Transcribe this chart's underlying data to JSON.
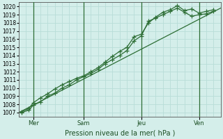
{
  "xlabel": "Pression niveau de la mer( hPa )",
  "bg_color": "#d4eeea",
  "grid_color": "#b8ddd8",
  "line_color": "#2d6e35",
  "ylim": [
    1006.5,
    1020.5
  ],
  "yticks": [
    1007,
    1008,
    1009,
    1010,
    1011,
    1012,
    1013,
    1014,
    1015,
    1016,
    1017,
    1018,
    1019,
    1020
  ],
  "xlim": [
    0,
    14
  ],
  "day_labels": [
    "Mer",
    "Sam",
    "Jeu",
    "Ven"
  ],
  "day_vline_x": [
    1.0,
    4.5,
    8.5,
    12.5
  ],
  "trend_x": [
    0,
    14
  ],
  "trend_y": [
    1007.0,
    1019.8
  ],
  "series1_x": [
    0.2,
    0.7,
    1.0,
    1.5,
    2.0,
    2.5,
    3.0,
    3.5,
    4.0,
    4.5,
    5.0,
    5.5,
    6.0,
    6.5,
    7.0,
    7.5,
    8.0,
    8.5,
    9.0,
    9.5,
    10.0,
    10.5,
    11.0,
    11.5,
    12.0,
    12.5,
    13.0,
    13.5
  ],
  "series1_y": [
    1007.1,
    1007.5,
    1008.2,
    1008.8,
    1009.3,
    1009.9,
    1010.4,
    1010.8,
    1011.2,
    1011.5,
    1012.0,
    1012.5,
    1013.2,
    1013.9,
    1014.5,
    1015.0,
    1016.3,
    1016.6,
    1018.0,
    1018.7,
    1019.3,
    1019.6,
    1020.1,
    1019.5,
    1019.7,
    1019.2,
    1019.4,
    1019.6
  ],
  "series2_x": [
    0.2,
    0.7,
    1.0,
    1.5,
    2.0,
    2.5,
    3.0,
    3.5,
    4.0,
    4.5,
    5.0,
    5.5,
    6.0,
    6.5,
    7.0,
    7.5,
    8.0,
    8.5,
    9.0,
    9.5,
    10.0,
    10.5,
    11.0,
    11.5,
    12.0,
    12.5,
    13.0,
    13.5
  ],
  "series2_y": [
    1007.0,
    1007.3,
    1007.9,
    1008.3,
    1009.0,
    1009.4,
    1010.0,
    1010.4,
    1011.0,
    1011.4,
    1011.8,
    1012.3,
    1013.0,
    1013.5,
    1014.0,
    1014.6,
    1015.8,
    1016.4,
    1018.2,
    1018.6,
    1019.0,
    1019.4,
    1019.8,
    1019.3,
    1018.8,
    1019.0,
    1019.1,
    1019.4
  ],
  "minor_xticks_count": 28
}
